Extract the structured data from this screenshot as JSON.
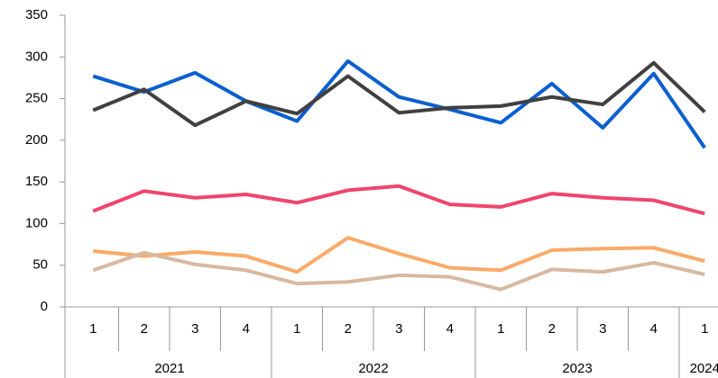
{
  "chart_data": {
    "type": "line",
    "groups": [
      {
        "label": "2021",
        "categories": [
          "1",
          "2",
          "3",
          "4"
        ]
      },
      {
        "label": "2022",
        "categories": [
          "1",
          "2",
          "3",
          "4"
        ]
      },
      {
        "label": "2023",
        "categories": [
          "1",
          "2",
          "3",
          "4"
        ]
      },
      {
        "label": "2024",
        "categories": [
          "1"
        ]
      }
    ],
    "series": [
      {
        "color": "#0a5fd0",
        "values": [
          277,
          258,
          281,
          247,
          223,
          295,
          252,
          237,
          221,
          268,
          215,
          280,
          191
        ]
      },
      {
        "color": "#404040",
        "values": [
          236,
          261,
          218,
          247,
          232,
          277,
          233,
          239,
          241,
          252,
          243,
          293,
          234
        ]
      },
      {
        "color": "#f0456c",
        "values": [
          115,
          139,
          131,
          135,
          125,
          140,
          145,
          123,
          120,
          136,
          131,
          128,
          112
        ]
      },
      {
        "color": "#fbaa68",
        "values": [
          67,
          61,
          66,
          61,
          42,
          83,
          64,
          47,
          44,
          68,
          70,
          71,
          55
        ]
      },
      {
        "color": "#d8b8a0",
        "values": [
          44,
          65,
          51,
          44,
          28,
          30,
          38,
          36,
          21,
          45,
          42,
          53,
          39
        ]
      }
    ],
    "ylim": [
      0,
      350
    ],
    "yticks": [
      0,
      50,
      100,
      150,
      200,
      250,
      300,
      350
    ]
  }
}
